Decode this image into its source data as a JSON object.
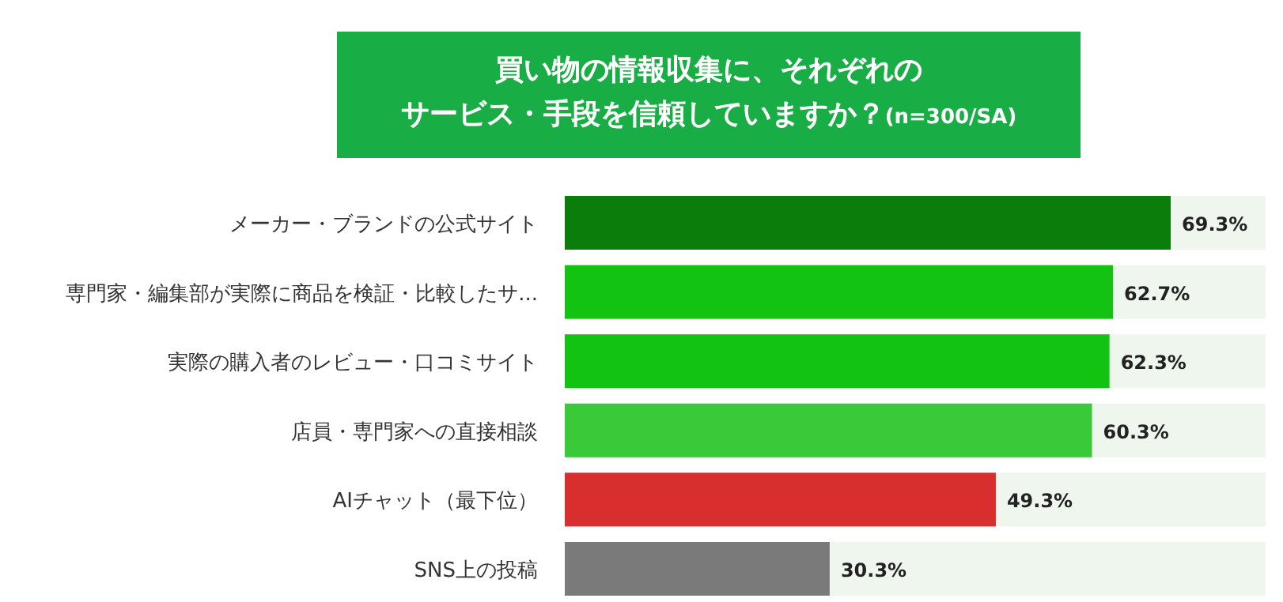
{
  "chart_data": {
    "type": "bar",
    "orientation": "horizontal",
    "title": "買い物の情報収集に、それぞれのサービス・手段を信頼していますか？",
    "subtitle": "(n=300/SA)",
    "categories": [
      "メーカー・ブランドの公式サイト",
      "専門家・編集部が実際に商品を検証・比較したサ...",
      "実際の購入者のレビュー・口コミサイト",
      "店員・専門家への直接相談",
      "AIチャット（最下位）",
      "SNS上の投稿"
    ],
    "values": [
      69.3,
      62.7,
      62.3,
      60.3,
      49.3,
      30.3
    ],
    "colors": [
      "#0b7d0b",
      "#12c312",
      "#12c312",
      "#39c939",
      "#d92e2e",
      "#7a7a7a"
    ],
    "value_labels": [
      "69.3%",
      "62.7%",
      "62.3%",
      "60.3%",
      "49.3%",
      "30.3%"
    ]
  }
}
